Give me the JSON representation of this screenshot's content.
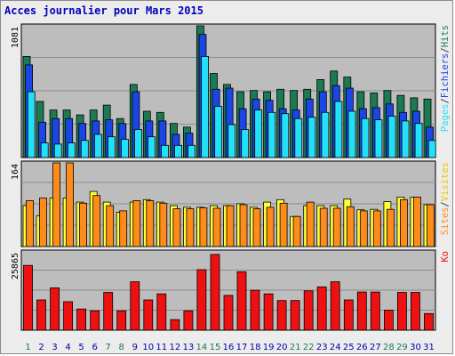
{
  "title": "Acces journalier pour Mars 2015",
  "chart_data": {
    "type": "bar",
    "title": "Acces journalier pour Mars 2015",
    "categories": [
      "1",
      "2",
      "3",
      "4",
      "5",
      "6",
      "7",
      "8",
      "9",
      "10",
      "11",
      "12",
      "13",
      "14",
      "15",
      "16",
      "17",
      "18",
      "19",
      "20",
      "21",
      "22",
      "23",
      "24",
      "25",
      "26",
      "27",
      "28",
      "29",
      "30",
      "31"
    ],
    "weekend_days": [
      "1",
      "7",
      "8",
      "14",
      "15",
      "21",
      "22",
      "28",
      "29"
    ],
    "colors": {
      "hits": "#1a7a50",
      "files": "#1b46e6",
      "pages": "#22e0f8",
      "visits": "#ffff33",
      "sites": "#ff8c1a",
      "kbytes": "#ee1111",
      "weekday_label": "#0000aa",
      "weekend_label": "#1a7a50"
    },
    "panels": [
      {
        "id": "hits-files-pages",
        "ymax_label": "1081",
        "ymax": 1081,
        "legend": [
          {
            "text": "Pages",
            "color": "#22e0f8"
          },
          {
            "text": "/",
            "color": "#333333"
          },
          {
            "text": "Fichiers",
            "color": "#1b46e6"
          },
          {
            "text": "/",
            "color": "#333333"
          },
          {
            "text": "Hits",
            "color": "#1a7a50"
          }
        ],
        "series": [
          {
            "name": "Hits",
            "color": "#1a7a50",
            "values": [
              830,
              460,
              390,
              390,
              350,
              390,
              430,
              320,
              600,
              380,
              370,
              280,
              250,
              1081,
              690,
              600,
              540,
              550,
              540,
              560,
              550,
              560,
              640,
              710,
              660,
              540,
              530,
              550,
              510,
              490,
              480
            ]
          },
          {
            "name": "Fichiers",
            "color": "#1b46e6",
            "values": [
              760,
              290,
              320,
              320,
              280,
              300,
              310,
              280,
              540,
              300,
              300,
              190,
              200,
              1010,
              560,
              570,
              400,
              480,
              470,
              400,
              390,
              480,
              540,
              590,
              570,
              400,
              410,
              440,
              370,
              380,
              250
            ]
          },
          {
            "name": "Pages",
            "color": "#22e0f8",
            "values": [
              540,
              120,
              110,
              120,
              140,
              190,
              170,
              150,
              230,
              170,
              100,
              100,
              100,
              830,
              420,
              270,
              230,
              390,
              370,
              360,
              320,
              330,
              370,
              460,
              380,
              320,
              310,
              340,
              300,
              280,
              140
            ]
          }
        ]
      },
      {
        "id": "visits-sites",
        "ymax_label": "164",
        "ymax": 164,
        "legend": [
          {
            "text": "Sites",
            "color": "#ff8c1a"
          },
          {
            "text": "/",
            "color": "#333333"
          },
          {
            "text": "Visites",
            "color": "#e8c800"
          }
        ],
        "series": [
          {
            "name": "Visites",
            "color": "#ffff33",
            "values": [
              80,
              60,
              95,
              95,
              87,
              108,
              87,
              67,
              87,
              92,
              87,
              80,
              77,
              77,
              80,
              80,
              84,
              77,
              87,
              92,
              59,
              80,
              80,
              80,
              93,
              72,
              73,
              88,
              97,
              97,
              82
            ]
          },
          {
            "name": "Sites",
            "color": "#ff8c1a",
            "values": [
              90,
              95,
              164,
              164,
              85,
              100,
              80,
              70,
              90,
              90,
              85,
              74,
              74,
              76,
              75,
              80,
              82,
              74,
              77,
              85,
              59,
              87,
              75,
              75,
              78,
              70,
              70,
              73,
              92,
              97,
              82
            ]
          }
        ]
      },
      {
        "id": "kbytes",
        "ymax_label": "25865",
        "ymax": 25865,
        "legend": [
          {
            "text": "Ko",
            "color": "#ee1111"
          }
        ],
        "series": [
          {
            "name": "Ko",
            "color": "#ee1111",
            "values": [
              21400,
              10000,
              14000,
              9400,
              7000,
              6400,
              12500,
              6400,
              16000,
              10000,
              12000,
              3500,
              6400,
              20000,
              25000,
              11500,
              19300,
              13200,
              12000,
              9800,
              9800,
              13000,
              14300,
              16000,
              10000,
              12600,
              12600,
              6600,
              12500,
              12500,
              5500
            ]
          }
        ]
      }
    ]
  }
}
